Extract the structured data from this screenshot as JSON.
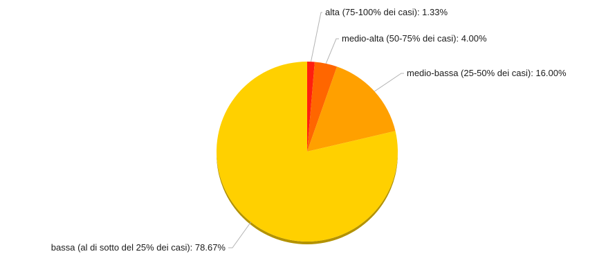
{
  "chart_data": {
    "type": "pie",
    "title": "",
    "slices": [
      {
        "label": "alta (75-100% dei casi): 1.33%",
        "value": 1.33,
        "color": "#ff1f0f",
        "side": "#b21608"
      },
      {
        "label": "medio-alta (50-75% dei casi): 4.00%",
        "value": 4.0,
        "color": "#ff6600",
        "side": "#b34700"
      },
      {
        "label": "medio-bassa (25-50% dei casi): 16.00%",
        "value": 16.0,
        "color": "#ffa000",
        "side": "#b37000"
      },
      {
        "label": "bassa (al di sotto del 25% dei casi): 78.67%",
        "value": 78.67,
        "color": "#ffd000",
        "side": "#b39200"
      }
    ],
    "start_angle": "12 o'clock",
    "direction": "clockwise",
    "legend": "none"
  }
}
